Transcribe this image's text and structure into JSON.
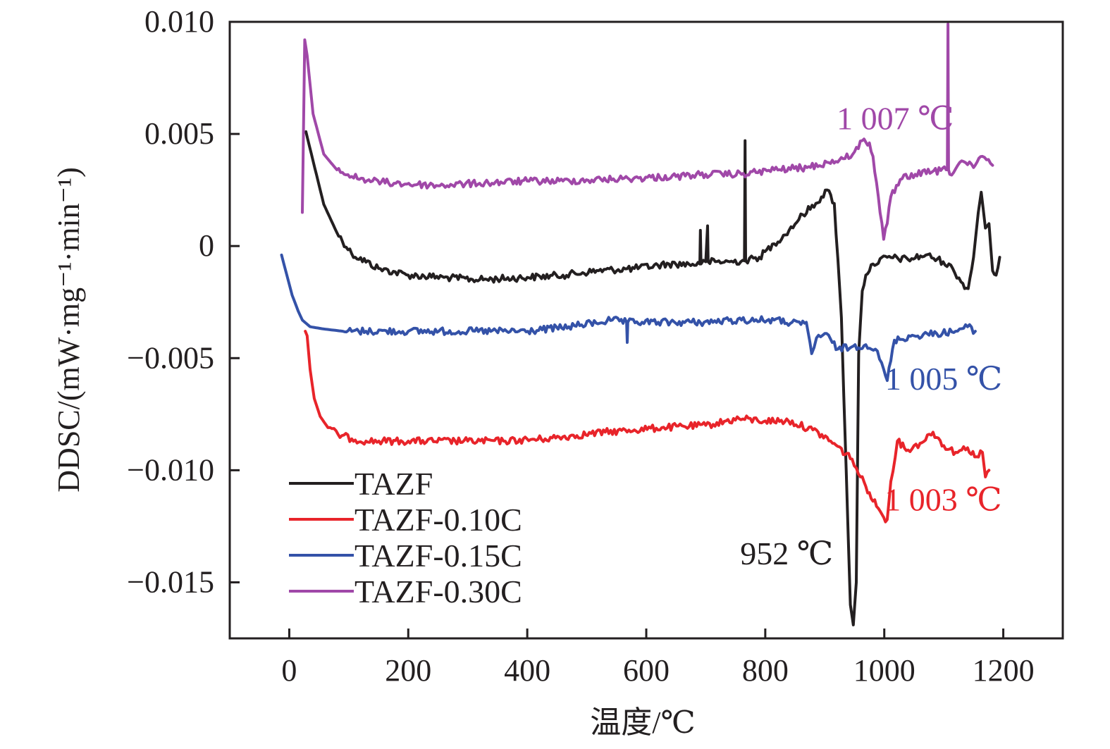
{
  "chart_data": {
    "type": "line",
    "title": "",
    "xlabel": "温度/℃",
    "ylabel": "DDSC/(mW·mg⁻¹·min⁻¹)",
    "xlim": [
      -100,
      1300
    ],
    "ylim": [
      -0.0175,
      0.01
    ],
    "grid": false,
    "legend_position": "bottom-left",
    "x_ticks": [
      0,
      200,
      400,
      600,
      800,
      1000,
      1200
    ],
    "x_tick_labels": [
      "0",
      "200",
      "400",
      "600",
      "800",
      "1000",
      "1200"
    ],
    "y_ticks": [
      0.01,
      0.005,
      0,
      -0.005,
      -0.01,
      -0.015
    ],
    "y_tick_labels": [
      "0.010",
      "0.005",
      "0",
      "−0.005",
      "−0.010",
      "−0.015"
    ],
    "series": [
      {
        "name": "TAZF",
        "color": "#231f20",
        "x": [
          28,
          40,
          58,
          80,
          105,
          150,
          200,
          260,
          320,
          400,
          460,
          520,
          580,
          638,
          690,
          691,
          692,
          700,
          703,
          704,
          740,
          765,
          766,
          767,
          790,
          815,
          840,
          863,
          885,
          904,
          916,
          928,
          936,
          943,
          948,
          953,
          957,
          963,
          969,
          981,
          1005,
          1040,
          1070,
          1099,
          1115,
          1129,
          1141,
          1150,
          1158,
          1163,
          1170,
          1176,
          1182,
          1188,
          1194
        ],
        "y": [
          0.0051,
          0.0038,
          0.00186,
          0.0006,
          -0.00035,
          -0.001,
          -0.0013,
          -0.0014,
          -0.0015,
          -0.0014,
          -0.0013,
          -0.0011,
          -0.001,
          -0.0008,
          -0.0008,
          0.0007,
          -0.0008,
          -0.0007,
          0.0009,
          -0.0007,
          -0.0007,
          -0.00066,
          0.0047,
          -0.00066,
          -0.0005,
          0.0001,
          0.0007,
          0.0014,
          0.0019,
          0.0025,
          0.0019,
          -0.0032,
          -0.01,
          -0.016,
          -0.0169,
          -0.015,
          -0.0048,
          -0.002,
          -0.0013,
          -0.0008,
          -0.0005,
          -0.0006,
          -0.0004,
          -0.0007,
          -0.001,
          -0.0016,
          -0.0019,
          -0.0005,
          0.0015,
          0.0024,
          0.0008,
          0.001,
          -0.0011,
          -0.0013,
          -0.0005
        ]
      },
      {
        "name": "TAZF-0.10C",
        "color": "#e8242a",
        "x": [
          27,
          30,
          35,
          42,
          52,
          65,
          82,
          105,
          129,
          200,
          300,
          360,
          430,
          531,
          580,
          626,
          700,
          756,
          800,
          839,
          880,
          910,
          946,
          960,
          975,
          990,
          999,
          1005,
          1011,
          1022,
          1040,
          1060,
          1082,
          1100,
          1120,
          1140,
          1155,
          1165,
          1170,
          1176
        ],
        "y": [
          -0.0038,
          -0.004,
          -0.0055,
          -0.0068,
          -0.0076,
          -0.0081,
          -0.0084,
          -0.0086,
          -0.0087,
          -0.0087,
          -0.0087,
          -0.0087,
          -0.0086,
          -0.0083,
          -0.0082,
          -0.0081,
          -0.008,
          -0.0077,
          -0.0078,
          -0.0078,
          -0.0082,
          -0.0087,
          -0.0095,
          -0.0103,
          -0.011,
          -0.0117,
          -0.0121,
          -0.0122,
          -0.0105,
          -0.0087,
          -0.0091,
          -0.0088,
          -0.0083,
          -0.0089,
          -0.0092,
          -0.009,
          -0.0094,
          -0.0092,
          -0.0103,
          -0.01
        ]
      },
      {
        "name": "TAZF-0.15C",
        "color": "#3452a8",
        "x": [
          -13,
          -5,
          5,
          15,
          22,
          35,
          58,
          90,
          129,
          200,
          300,
          401,
          470,
          543,
          567,
          568,
          569,
          620,
          697,
          760,
          815,
          860,
          869,
          878,
          886,
          900,
          922,
          945,
          969,
          985,
          999,
          1005,
          1017,
          1050,
          1088,
          1120,
          1140,
          1153
        ],
        "y": [
          -0.0004,
          -0.0012,
          -0.0022,
          -0.0029,
          -0.0033,
          -0.0036,
          -0.0037,
          -0.0038,
          -0.0038,
          -0.0038,
          -0.0038,
          -0.0038,
          -0.0036,
          -0.0033,
          -0.0034,
          -0.0043,
          -0.0034,
          -0.0034,
          -0.0034,
          -0.0033,
          -0.0033,
          -0.0035,
          -0.0034,
          -0.0048,
          -0.0041,
          -0.0039,
          -0.0046,
          -0.0045,
          -0.0044,
          -0.0046,
          -0.0055,
          -0.006,
          -0.0042,
          -0.004,
          -0.0039,
          -0.0038,
          -0.0036,
          -0.0038
        ]
      },
      {
        "name": "TAZF-0.30C",
        "color": "#a048a8",
        "x": [
          22,
          26,
          30,
          40,
          58,
          80,
          105,
          140,
          176,
          247,
          320,
          400,
          460,
          560,
          650,
          700,
          760,
          815,
          870,
          934,
          950,
          963,
          975,
          981,
          990,
          999,
          1005,
          1011,
          1030,
          1052,
          1080,
          1104,
          1106,
          1107,
          1108,
          1110,
          1130,
          1150,
          1165,
          1182
        ],
        "y": [
          0.0015,
          0.0092,
          0.0085,
          0.0059,
          0.0041,
          0.0034,
          0.0031,
          0.0029,
          0.0028,
          0.0027,
          0.0028,
          0.0029,
          0.0029,
          0.003,
          0.0031,
          0.0032,
          0.0032,
          0.0034,
          0.0035,
          0.0039,
          0.0042,
          0.0047,
          0.0046,
          0.004,
          0.0022,
          0.0003,
          0.001,
          0.0022,
          0.003,
          0.0032,
          0.0033,
          0.0034,
          0.0034,
          0.0099,
          0.0034,
          0.0032,
          0.0038,
          0.0035,
          0.004,
          0.0036
        ]
      }
    ],
    "legend": [
      {
        "label": "TAZF",
        "color": "#231f20"
      },
      {
        "label": "TAZF-0.10C",
        "color": "#e8242a"
      },
      {
        "label": "TAZF-0.15C",
        "color": "#3452a8"
      },
      {
        "label": "TAZF-0.30C",
        "color": "#a048a8"
      }
    ],
    "annotations": [
      {
        "text": "1 007 ℃",
        "color": "#a048a8",
        "x": 1007,
        "y": 0.0052
      },
      {
        "text": "1 005 ℃",
        "color": "#3452a8",
        "x": 1005,
        "y": -0.0064
      },
      {
        "text": "1 003 ℃",
        "color": "#e8242a",
        "x": 1003,
        "y": -0.0118
      },
      {
        "text": "952 ℃",
        "color": "#231f20",
        "x": 952,
        "y": -0.0142
      }
    ]
  }
}
